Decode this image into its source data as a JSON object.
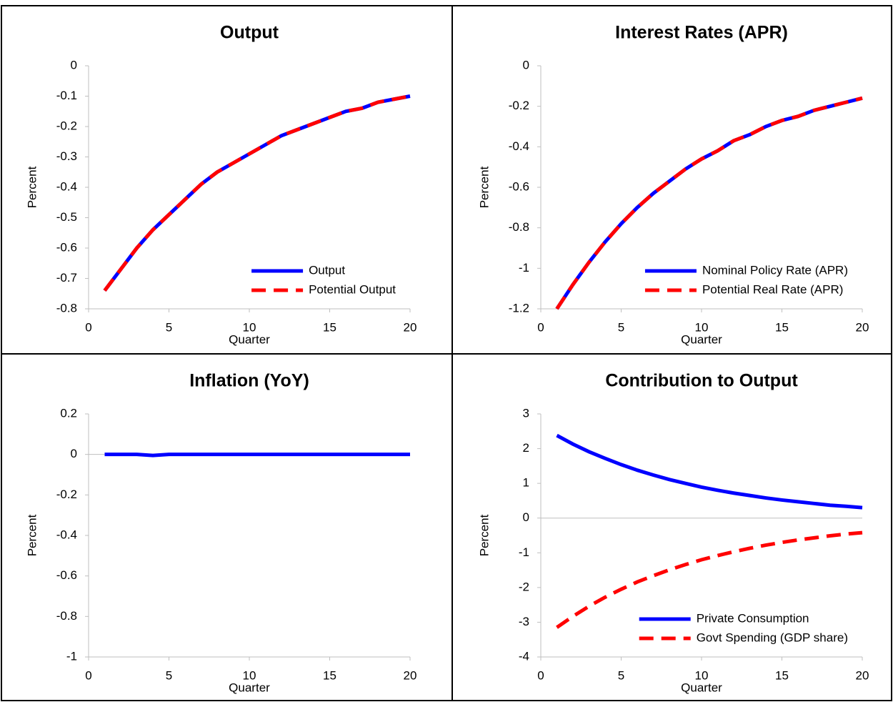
{
  "chart_data": [
    {
      "type": "line",
      "title": "Output",
      "y_label": "Percent",
      "x_label": "Quarter",
      "x": [
        1,
        2,
        3,
        4,
        5,
        6,
        7,
        8,
        9,
        10,
        11,
        12,
        13,
        14,
        15,
        16,
        17,
        18,
        19,
        20
      ],
      "xlim": [
        0,
        20
      ],
      "xticks": [
        0,
        5,
        10,
        15,
        20
      ],
      "ylim": [
        -0.8,
        0
      ],
      "yticks": [
        0,
        -0.1,
        -0.2,
        -0.3,
        -0.4,
        -0.5,
        -0.6,
        -0.7,
        -0.8
      ],
      "legend": "lower right",
      "series": [
        {
          "name": "Output",
          "color": "#0000ff",
          "style": "solid",
          "values": [
            -0.74,
            -0.67,
            -0.6,
            -0.54,
            -0.49,
            -0.44,
            -0.39,
            -0.35,
            -0.32,
            -0.29,
            -0.26,
            -0.23,
            -0.21,
            -0.19,
            -0.17,
            -0.15,
            -0.14,
            -0.12,
            -0.11,
            -0.1
          ]
        },
        {
          "name": "Potential Output",
          "color": "#ff0000",
          "style": "dashed",
          "values": [
            -0.74,
            -0.67,
            -0.6,
            -0.54,
            -0.49,
            -0.44,
            -0.39,
            -0.35,
            -0.32,
            -0.29,
            -0.26,
            -0.23,
            -0.21,
            -0.19,
            -0.17,
            -0.15,
            -0.14,
            -0.12,
            -0.11,
            -0.1
          ]
        }
      ]
    },
    {
      "type": "line",
      "title": "Interest Rates (APR)",
      "y_label": "Percent",
      "x_label": "Quarter",
      "x": [
        1,
        2,
        3,
        4,
        5,
        6,
        7,
        8,
        9,
        10,
        11,
        12,
        13,
        14,
        15,
        16,
        17,
        18,
        19,
        20
      ],
      "xlim": [
        0,
        20
      ],
      "xticks": [
        0,
        5,
        10,
        15,
        20
      ],
      "ylim": [
        -1.2,
        0
      ],
      "yticks": [
        0,
        -0.2,
        -0.4,
        -0.6,
        -0.8,
        -1,
        -1.2
      ],
      "legend": "lower right",
      "series": [
        {
          "name": "Nominal Policy Rate (APR)",
          "color": "#0000ff",
          "style": "solid",
          "values": [
            -1.2,
            -1.08,
            -0.97,
            -0.87,
            -0.78,
            -0.7,
            -0.63,
            -0.57,
            -0.51,
            -0.46,
            -0.42,
            -0.37,
            -0.34,
            -0.3,
            -0.27,
            -0.25,
            -0.22,
            -0.2,
            -0.18,
            -0.16
          ]
        },
        {
          "name": "Potential Real Rate (APR)",
          "color": "#ff0000",
          "style": "dashed",
          "values": [
            -1.2,
            -1.08,
            -0.97,
            -0.87,
            -0.78,
            -0.7,
            -0.63,
            -0.57,
            -0.51,
            -0.46,
            -0.42,
            -0.37,
            -0.34,
            -0.3,
            -0.27,
            -0.25,
            -0.22,
            -0.2,
            -0.18,
            -0.16
          ]
        }
      ]
    },
    {
      "type": "line",
      "title": "Inflation (YoY)",
      "y_label": "Percent",
      "x_label": "Quarter",
      "x": [
        1,
        2,
        3,
        4,
        5,
        6,
        7,
        8,
        9,
        10,
        11,
        12,
        13,
        14,
        15,
        16,
        17,
        18,
        19,
        20
      ],
      "xlim": [
        0,
        20
      ],
      "xticks": [
        0,
        5,
        10,
        15,
        20
      ],
      "ylim": [
        -1,
        0.2
      ],
      "yticks": [
        0.2,
        0,
        -0.2,
        -0.4,
        -0.6,
        -0.8,
        -1
      ],
      "series": [
        {
          "color": "#0000ff",
          "style": "solid",
          "values": [
            0,
            0,
            0,
            -0.005,
            0,
            0,
            0,
            0,
            0,
            0,
            0,
            0,
            0,
            0,
            0,
            0,
            0,
            0,
            0,
            0
          ]
        }
      ]
    },
    {
      "type": "line",
      "title": "Contribution to Output",
      "y_label": "Percent",
      "x_label": "Quarter",
      "x": [
        1,
        2,
        3,
        4,
        5,
        6,
        7,
        8,
        9,
        10,
        11,
        12,
        13,
        14,
        15,
        16,
        17,
        18,
        19,
        20
      ],
      "xlim": [
        0,
        20
      ],
      "xticks": [
        0,
        5,
        10,
        15,
        20
      ],
      "ylim": [
        -4,
        3
      ],
      "yticks": [
        3,
        2,
        1,
        0,
        -1,
        -2,
        -3,
        -4
      ],
      "legend": "lower right",
      "series": [
        {
          "name": "Private Consumption",
          "color": "#0000ff",
          "style": "solid",
          "values": [
            2.38,
            2.13,
            1.91,
            1.72,
            1.54,
            1.38,
            1.24,
            1.11,
            1.0,
            0.89,
            0.8,
            0.72,
            0.65,
            0.58,
            0.52,
            0.47,
            0.42,
            0.37,
            0.34,
            0.3
          ]
        },
        {
          "name": "Govt Spending (GDP share)",
          "color": "#ff0000",
          "style": "dashed",
          "values": [
            -3.15,
            -2.83,
            -2.54,
            -2.28,
            -2.05,
            -1.84,
            -1.66,
            -1.49,
            -1.34,
            -1.2,
            -1.08,
            -0.97,
            -0.87,
            -0.78,
            -0.7,
            -0.63,
            -0.57,
            -0.51,
            -0.46,
            -0.42
          ]
        }
      ]
    }
  ]
}
